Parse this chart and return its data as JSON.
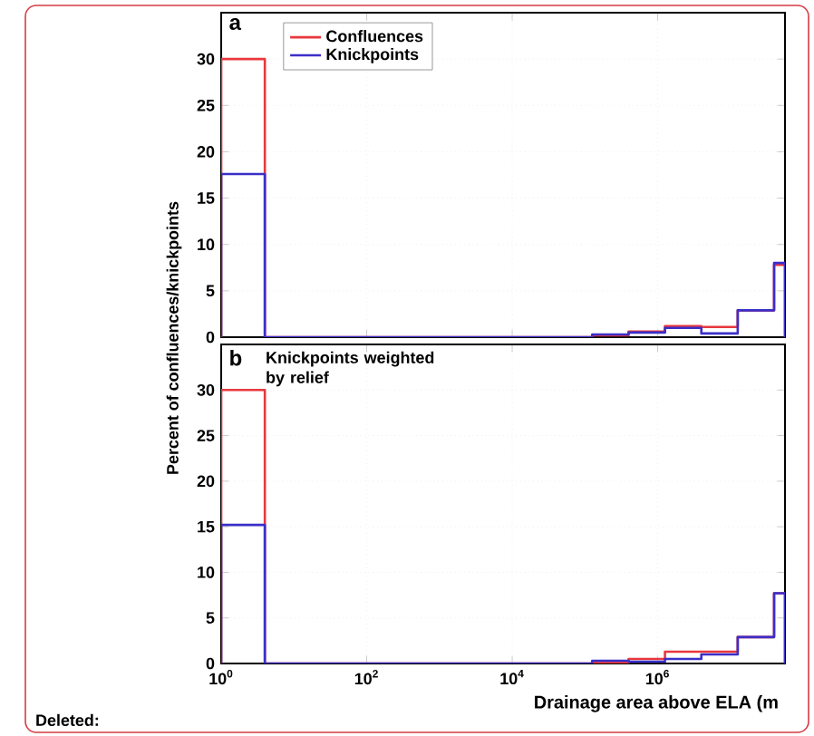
{
  "chart_data": [
    {
      "type": "histogram",
      "title": "a",
      "bins": [
        1,
        3.981,
        12.59,
        39.81,
        125.9,
        398.1,
        1259,
        3981,
        12589,
        39811,
        125893,
        398107,
        1258925,
        3981072,
        12589254,
        39810717,
        56234133
      ],
      "series": [
        {
          "name": "Confluences",
          "color": "#e8383d",
          "values": [
            30,
            0,
            0,
            0,
            0,
            0,
            0,
            0,
            0,
            0,
            0.2,
            0.6,
            1.2,
            1.1,
            2.9,
            7.8
          ]
        },
        {
          "name": "Knickpoints",
          "color": "#3a2fc8",
          "values": [
            17.6,
            0,
            0,
            0,
            0,
            0,
            0,
            0,
            0,
            0,
            0.3,
            0.5,
            1.0,
            0.4,
            2.9,
            8.0
          ]
        }
      ],
      "log": "x",
      "xlim": [
        1,
        56234133
      ],
      "xticks": [
        {
          "value": 1,
          "label": null
        },
        {
          "value": 100,
          "label": null
        },
        {
          "value": 10000,
          "label": null
        },
        {
          "value": 1000000,
          "label": null
        }
      ],
      "ylim": [
        0,
        35
      ],
      "yticks": [
        0,
        5,
        10,
        15,
        20,
        25,
        30
      ],
      "tick_labels": "y",
      "legend": "top left",
      "grid": true
    },
    {
      "type": "histogram",
      "title": "b",
      "ylabel": "Percent of confluences/knickpoints",
      "xlabel": "Drainage area above ELA (m",
      "annotations": [
        "Knickpoints weighted by relief",
        "Deleted:"
      ],
      "bins": [
        1,
        3.981,
        12.59,
        39.81,
        125.9,
        398.1,
        1259,
        3981,
        12589,
        39811,
        125893,
        398107,
        1258925,
        3981072,
        12589254,
        39810717,
        56234133
      ],
      "series": [
        {
          "color": "#e8383d",
          "values": [
            30,
            0,
            0,
            0,
            0,
            0,
            0,
            0,
            0,
            0,
            0.1,
            0.5,
            1.3,
            1.3,
            2.9,
            7.7
          ]
        },
        {
          "color": "#3a2fc8",
          "values": [
            15.2,
            0,
            0,
            0,
            0,
            0,
            0,
            0,
            0,
            0,
            0.3,
            0.2,
            0.5,
            1.0,
            2.9,
            7.7
          ]
        }
      ],
      "log": "x",
      "xlim": [
        1,
        56234133
      ],
      "xticks": [
        {
          "value": 1,
          "label": "10$^{0}$"
        },
        {
          "value": 100,
          "label": "10$^{2}$"
        },
        {
          "value": 10000,
          "label": "10$^{4}$"
        },
        {
          "value": 1000000,
          "label": "10$^{6}$"
        }
      ],
      "ylim": [
        0,
        35
      ],
      "yticks": [
        0,
        5,
        10,
        15,
        20,
        25,
        30
      ],
      "grid": true
    }
  ]
}
